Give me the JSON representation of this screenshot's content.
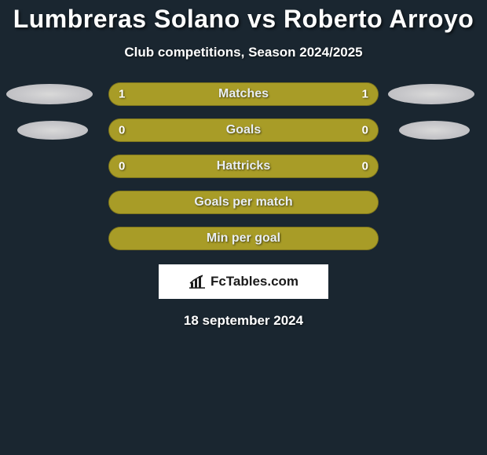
{
  "background_color": "#1a2630",
  "text_color": "#ffffff",
  "title": "Lumbreras Solano vs Roberto Arroyo",
  "title_fontsize": 32,
  "subtitle": "Club competitions, Season 2024/2025",
  "subtitle_fontsize": 17,
  "bar_color": "#a89c27",
  "bar_border_color": "rgba(0,0,0,0.25)",
  "ellipse_gradient": "radial-gradient(ellipse at center, #d9d9d9 0%, #c8c8cb 45%, #b7b7bb 100%)",
  "rows": [
    {
      "label": "Matches",
      "left": "1",
      "right": "1",
      "left_pct": 50,
      "right_pct": 50,
      "show_values": true,
      "side_shape": "ellipse"
    },
    {
      "label": "Goals",
      "left": "0",
      "right": "0",
      "left_pct": 50,
      "right_pct": 50,
      "show_values": true,
      "side_shape": "ellipse-small"
    },
    {
      "label": "Hattricks",
      "left": "0",
      "right": "0",
      "left_pct": 50,
      "right_pct": 50,
      "show_values": true,
      "side_shape": "none"
    },
    {
      "label": "Goals per match",
      "left": "",
      "right": "",
      "left_pct": 50,
      "right_pct": 50,
      "show_values": false,
      "side_shape": "none"
    },
    {
      "label": "Min per goal",
      "left": "",
      "right": "",
      "left_pct": 50,
      "right_pct": 50,
      "show_values": false,
      "side_shape": "none"
    }
  ],
  "brand": {
    "text": "FcTables.com",
    "box_bg": "#ffffff",
    "text_color": "#1a1a1a",
    "icon_color": "#1a1a1a"
  },
  "date": "18 september 2024",
  "date_fontsize": 17
}
